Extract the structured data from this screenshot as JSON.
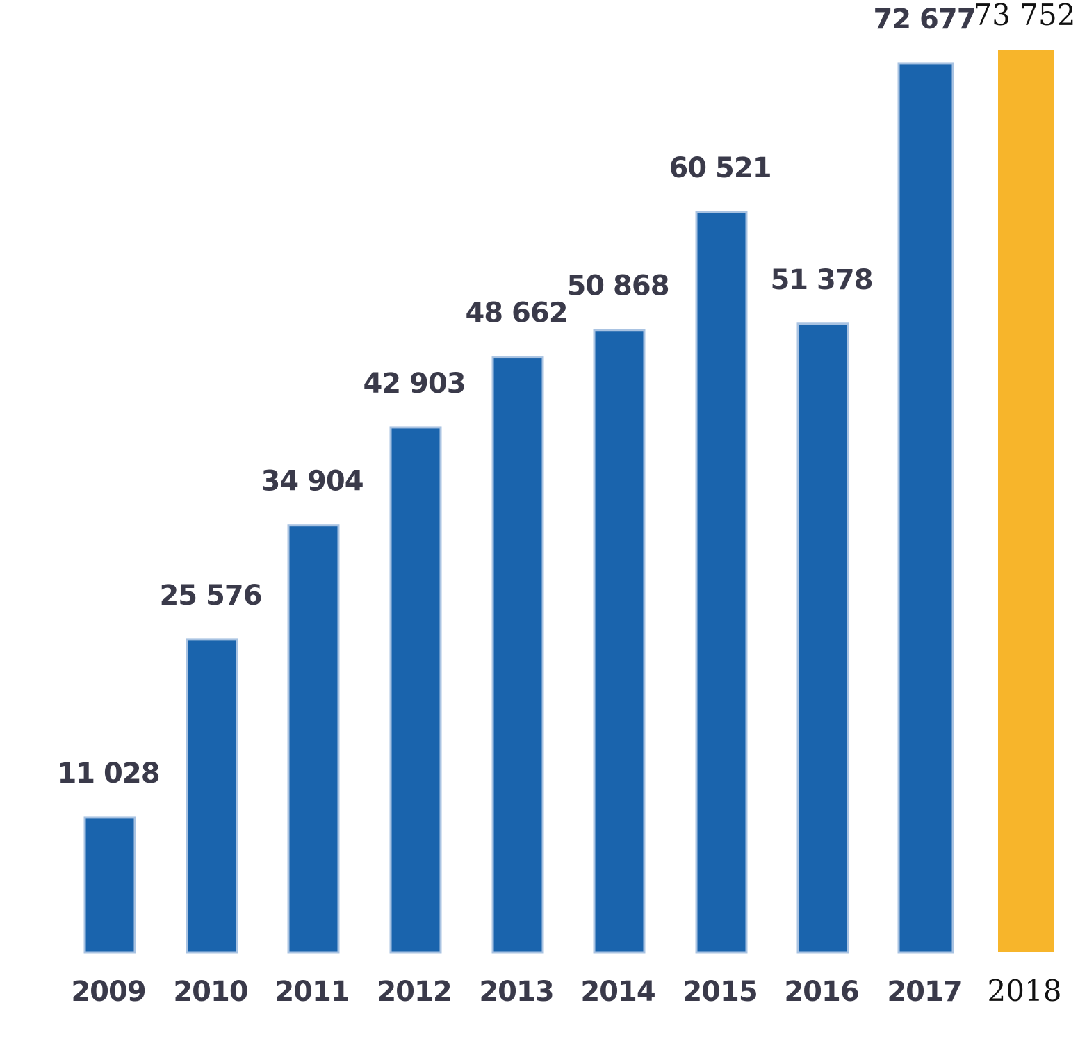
{
  "chart_data": {
    "type": "bar",
    "title": "",
    "xlabel": "",
    "ylabel": "",
    "categories": [
      "2009",
      "2010",
      "2011",
      "2012",
      "2013",
      "2014",
      "2015",
      "2016",
      "2017",
      "2018"
    ],
    "values": [
      11028,
      25576,
      34904,
      42903,
      48662,
      50868,
      60521,
      51378,
      72677,
      73752
    ],
    "value_labels": [
      "11 028",
      "25 576",
      "34 904",
      "42 903",
      "48 662",
      "50 868",
      "60 521",
      "51 378",
      "72 677",
      "73 752"
    ],
    "ylim": [
      0,
      73752
    ],
    "grid": false,
    "legend": "none",
    "highlight_index": 9,
    "colors": {
      "bar": "#1a64ad",
      "bar_edge": "#a9c3e2",
      "highlight": "#f7b52b",
      "text": "#3a3a4a",
      "highlight_text": "#111111"
    }
  }
}
